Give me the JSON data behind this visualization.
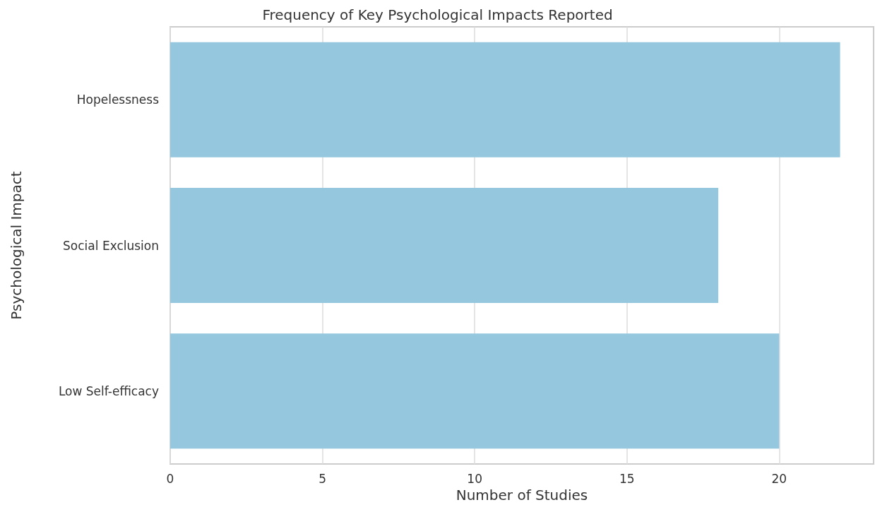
{
  "chart_data": {
    "type": "bar",
    "orientation": "horizontal",
    "title": "Frequency of Key Psychological Impacts Reported",
    "xlabel": "Number of Studies",
    "ylabel": "Psychological Impact",
    "categories": [
      "Hopelessness",
      "Social Exclusion",
      "Low Self-efficacy"
    ],
    "values": [
      22,
      18,
      20
    ],
    "color": "#95c8de",
    "xlim": [
      0,
      23.1
    ],
    "xticks": [
      0,
      5,
      10,
      15,
      20
    ],
    "grid": "x"
  }
}
